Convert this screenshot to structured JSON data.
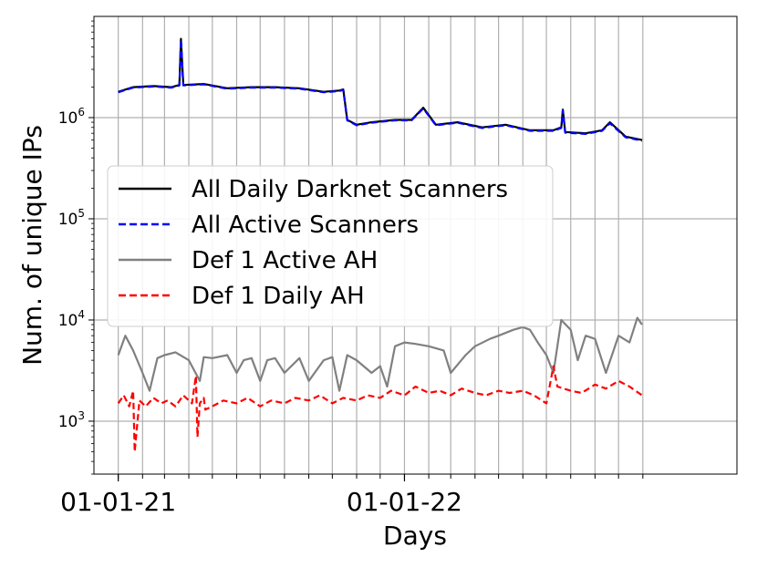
{
  "chart_data": {
    "type": "line",
    "title": "",
    "xlabel": "Days",
    "ylabel": "Num. of unique IPs",
    "yscale": "log",
    "ylim": [
      300,
      10000000
    ],
    "xlim": [
      "2020-12-01",
      "2023-03-01"
    ],
    "grid": true,
    "legend_position": "center-left",
    "x_tick_labels": [
      {
        "date": "2021-01-01",
        "label": "01-01-21"
      },
      {
        "date": "2022-01-01",
        "label": "01-01-22"
      }
    ],
    "y_tick_labels": [
      {
        "value": 1000,
        "label": "10",
        "exp": "3"
      },
      {
        "value": 10000,
        "label": "10",
        "exp": "4"
      },
      {
        "value": 100000,
        "label": "10",
        "exp": "5"
      },
      {
        "value": 1000000,
        "label": "10",
        "exp": "6"
      }
    ],
    "series": [
      {
        "name": "All Daily Darknet Scanners",
        "color": "#000000",
        "dash": "solid",
        "x": [
          "2021-01-01",
          "2021-01-20",
          "2021-02-15",
          "2021-03-10",
          "2021-03-20",
          "2021-03-22",
          "2021-03-25",
          "2021-04-20",
          "2021-05-20",
          "2021-06-20",
          "2021-07-20",
          "2021-08-20",
          "2021-09-20",
          "2021-10-10",
          "2021-10-15",
          "2021-10-20",
          "2021-11-01",
          "2021-11-20",
          "2021-12-20",
          "2022-01-10",
          "2022-01-25",
          "2022-02-10",
          "2022-03-10",
          "2022-04-10",
          "2022-05-10",
          "2022-06-10",
          "2022-07-10",
          "2022-07-20",
          "2022-07-22",
          "2022-07-25",
          "2022-08-20",
          "2022-09-10",
          "2022-09-20",
          "2022-10-10",
          "2022-10-31"
        ],
        "y": [
          1800000,
          2000000,
          2050000,
          2000000,
          2100000,
          6000000,
          2100000,
          2150000,
          1950000,
          2000000,
          2000000,
          1950000,
          1800000,
          1850000,
          1900000,
          950000,
          850000,
          900000,
          950000,
          950000,
          1250000,
          850000,
          900000,
          800000,
          850000,
          750000,
          750000,
          800000,
          1200000,
          720000,
          700000,
          750000,
          900000,
          650000,
          600000
        ]
      },
      {
        "name": "All Active Scanners",
        "color": "#0000ff",
        "dash": "dashed",
        "x": [
          "2021-01-01",
          "2021-01-20",
          "2021-02-15",
          "2021-03-10",
          "2021-03-20",
          "2021-03-22",
          "2021-03-25",
          "2021-04-20",
          "2021-05-20",
          "2021-06-20",
          "2021-07-20",
          "2021-08-20",
          "2021-09-20",
          "2021-10-10",
          "2021-10-15",
          "2021-10-20",
          "2021-11-01",
          "2021-11-20",
          "2021-12-20",
          "2022-01-10",
          "2022-01-25",
          "2022-02-10",
          "2022-03-10",
          "2022-04-10",
          "2022-05-10",
          "2022-06-10",
          "2022-07-10",
          "2022-07-20",
          "2022-07-22",
          "2022-07-25",
          "2022-08-20",
          "2022-09-10",
          "2022-09-20",
          "2022-10-10",
          "2022-10-31"
        ],
        "y": [
          1780000,
          1980000,
          2030000,
          1980000,
          2080000,
          5900000,
          2080000,
          2130000,
          1930000,
          1980000,
          1980000,
          1930000,
          1780000,
          1830000,
          1880000,
          940000,
          840000,
          890000,
          940000,
          940000,
          1230000,
          840000,
          890000,
          790000,
          840000,
          740000,
          740000,
          790000,
          1180000,
          710000,
          690000,
          740000,
          880000,
          640000,
          590000
        ]
      },
      {
        "name": "Def 1 Active AH",
        "color": "#808080",
        "dash": "solid",
        "x": [
          "2021-01-01",
          "2021-01-10",
          "2021-01-20",
          "2021-02-01",
          "2021-02-10",
          "2021-02-20",
          "2021-03-01",
          "2021-03-15",
          "2021-04-01",
          "2021-04-15",
          "2021-04-20",
          "2021-05-01",
          "2021-05-20",
          "2021-06-01",
          "2021-06-10",
          "2021-06-20",
          "2021-07-01",
          "2021-07-10",
          "2021-07-20",
          "2021-08-01",
          "2021-08-20",
          "2021-09-01",
          "2021-09-20",
          "2021-10-01",
          "2021-10-10",
          "2021-10-20",
          "2021-11-01",
          "2021-11-20",
          "2021-12-01",
          "2021-12-10",
          "2021-12-20",
          "2022-01-01",
          "2022-01-15",
          "2022-02-01",
          "2022-02-20",
          "2022-03-01",
          "2022-03-20",
          "2022-04-01",
          "2022-04-20",
          "2022-05-01",
          "2022-05-20",
          "2022-06-01",
          "2022-06-10",
          "2022-06-20",
          "2022-07-01",
          "2022-07-10",
          "2022-07-20",
          "2022-08-01",
          "2022-08-10",
          "2022-08-20",
          "2022-09-01",
          "2022-09-15",
          "2022-10-01",
          "2022-10-15",
          "2022-10-25",
          "2022-10-31"
        ],
        "y": [
          4500,
          7000,
          5000,
          3000,
          2000,
          4200,
          4500,
          4800,
          4000,
          2500,
          4300,
          4200,
          4500,
          3000,
          4000,
          4200,
          2500,
          4000,
          4200,
          3000,
          4200,
          2500,
          4000,
          4300,
          2000,
          4500,
          4000,
          3000,
          3500,
          2200,
          5500,
          6000,
          5800,
          5500,
          5000,
          3000,
          4500,
          5500,
          6500,
          7000,
          8000,
          8500,
          8000,
          6000,
          4500,
          3000,
          10000,
          8000,
          4000,
          7000,
          6500,
          3000,
          7000,
          6000,
          10500,
          9000
        ]
      },
      {
        "name": "Def 1 Daily AH",
        "color": "#ff0000",
        "dash": "dashed",
        "x": [
          "2021-01-01",
          "2021-01-08",
          "2021-01-15",
          "2021-01-20",
          "2021-01-22",
          "2021-01-28",
          "2021-02-05",
          "2021-02-15",
          "2021-02-25",
          "2021-03-05",
          "2021-03-15",
          "2021-03-25",
          "2021-04-05",
          "2021-04-10",
          "2021-04-12",
          "2021-04-15",
          "2021-04-20",
          "2021-04-22",
          "2021-05-01",
          "2021-05-15",
          "2021-06-01",
          "2021-06-15",
          "2021-07-01",
          "2021-07-15",
          "2021-08-01",
          "2021-08-15",
          "2021-09-01",
          "2021-09-15",
          "2021-10-01",
          "2021-10-15",
          "2021-11-01",
          "2021-11-15",
          "2021-12-01",
          "2021-12-15",
          "2022-01-01",
          "2022-01-15",
          "2022-02-01",
          "2022-02-15",
          "2022-03-01",
          "2022-03-15",
          "2022-04-01",
          "2022-04-15",
          "2022-05-01",
          "2022-05-15",
          "2022-06-01",
          "2022-06-15",
          "2022-07-01",
          "2022-07-10",
          "2022-07-15",
          "2022-08-01",
          "2022-08-15",
          "2022-09-01",
          "2022-09-15",
          "2022-10-01",
          "2022-10-15",
          "2022-10-31"
        ],
        "y": [
          1500,
          1800,
          1400,
          2000,
          500,
          1600,
          1400,
          1700,
          1500,
          1600,
          1400,
          1800,
          1500,
          2800,
          700,
          1500,
          1700,
          1300,
          1400,
          1600,
          1500,
          1700,
          1400,
          1600,
          1500,
          1700,
          1600,
          1800,
          1500,
          1700,
          1600,
          1800,
          1700,
          2000,
          1800,
          2200,
          1900,
          2000,
          1800,
          2100,
          1900,
          1800,
          2000,
          1900,
          2000,
          1800,
          1500,
          3500,
          2200,
          2000,
          1900,
          2300,
          2100,
          2500,
          2200,
          1800
        ]
      }
    ]
  }
}
